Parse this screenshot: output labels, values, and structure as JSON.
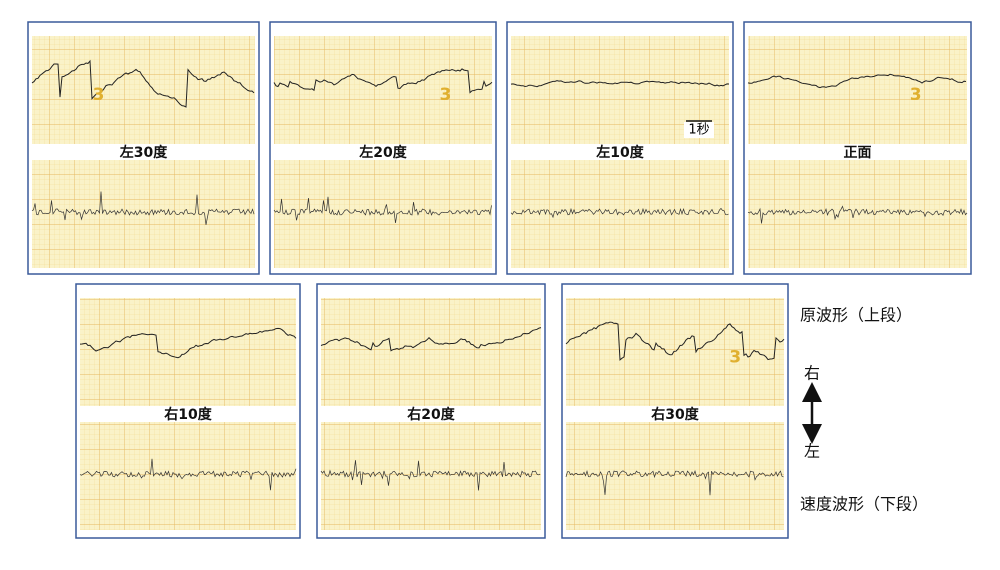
{
  "panels": [
    {
      "label": "左30度",
      "stamp": "3"
    },
    {
      "label": "左20度",
      "stamp": "3"
    },
    {
      "label": "左10度"
    },
    {
      "label": "正面",
      "stamp": "3"
    },
    {
      "label": "右10度"
    },
    {
      "label": "右20度"
    },
    {
      "label": "右30度",
      "stamp": "3"
    }
  ],
  "scale_label": "1秒",
  "legend": {
    "upper": "原波形（上段）",
    "right": "右",
    "left": "左",
    "lower": "速度波形（下段）"
  }
}
